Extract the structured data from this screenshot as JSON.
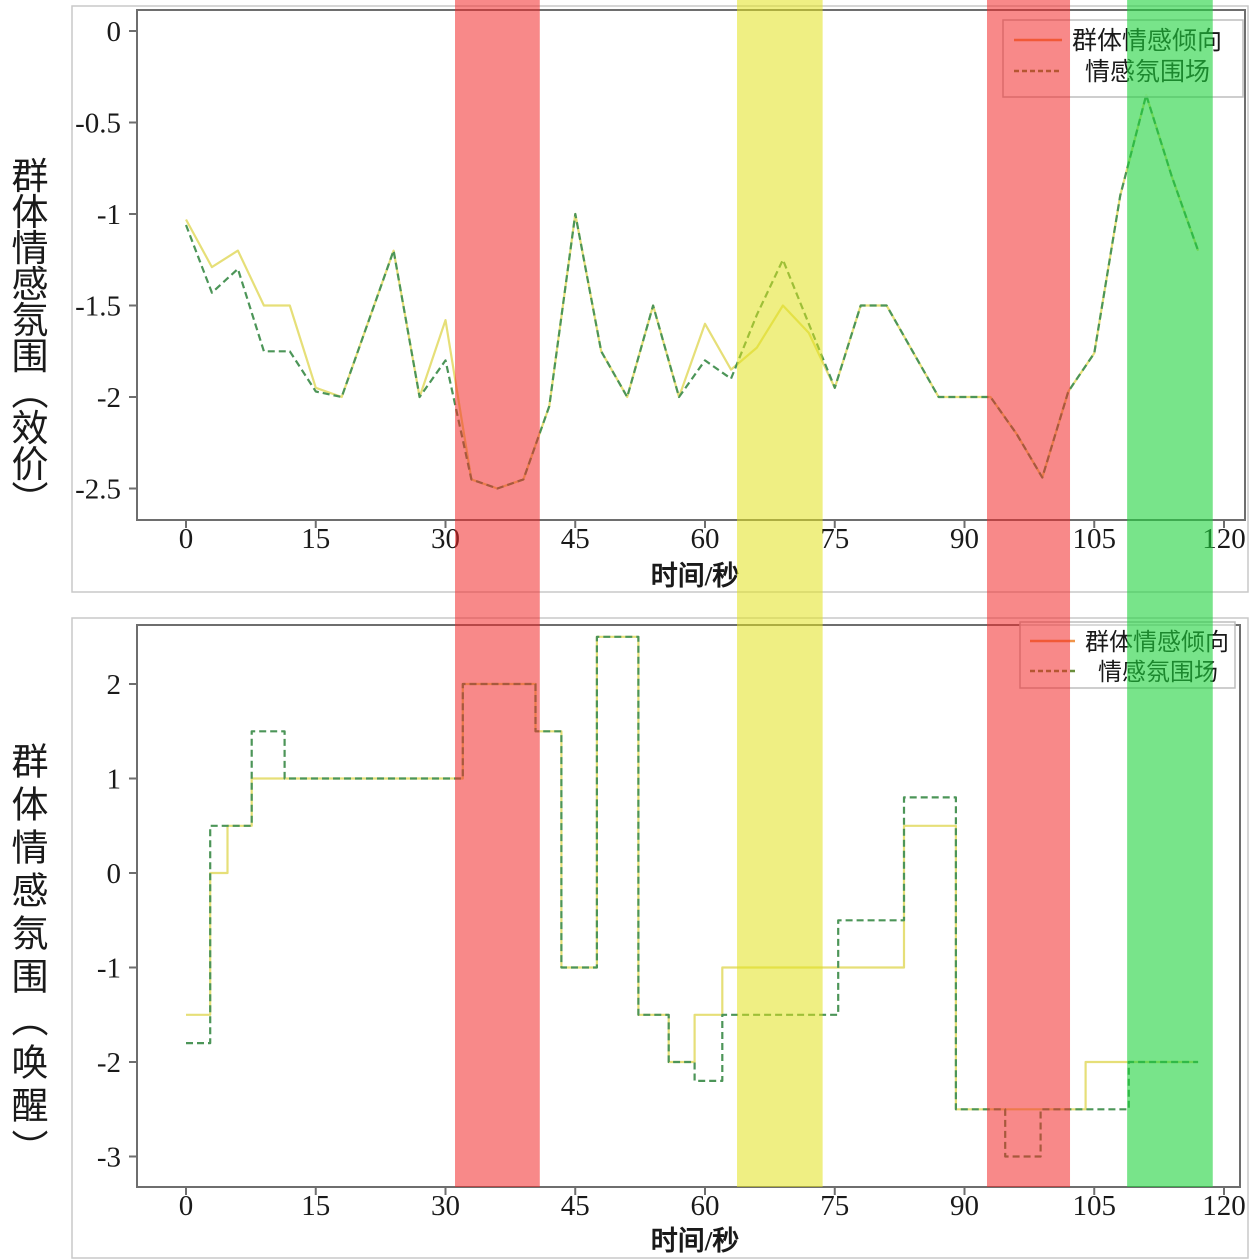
{
  "figure": {
    "background": "#ffffff",
    "border_color": "#c9c9c9",
    "spine_color": "#6e6e6e"
  },
  "highlight_bands": [
    {
      "name": "red-band-1",
      "t0": 31.1,
      "t1": 40.9,
      "color": "rgba(242,40,40,0.55)"
    },
    {
      "name": "yellow-band",
      "t0": 63.7,
      "t1": 73.6,
      "color": "rgba(225,225,30,0.55)"
    },
    {
      "name": "red-band-2",
      "t0": 92.6,
      "t1": 102.2,
      "color": "rgba(242,40,40,0.55)"
    },
    {
      "name": "green-band",
      "t0": 108.8,
      "t1": 118.7,
      "color": "rgba(30,210,60,0.6)"
    }
  ],
  "chart_data": [
    {
      "type": "line",
      "title": "",
      "xlabel": "时间/秒",
      "ylabel": "群体情感氛围（效价）",
      "xlim": [
        -5.7,
        122.4
      ],
      "ylim": [
        -2.67,
        0.12
      ],
      "x_ticks": [
        0,
        15,
        30,
        45,
        60,
        75,
        90,
        105,
        120
      ],
      "y_ticks": [
        0,
        -0.5,
        -1,
        -1.5,
        -2,
        -2.5
      ],
      "grid": false,
      "legend_position": "upper right",
      "legend": [
        "群体情感倾向",
        "情感氛围场"
      ],
      "series": [
        {
          "name": "群体情感倾向",
          "style": "solid",
          "color": "#e6df78",
          "legend_color": "#f0944a",
          "points": [
            [
              0,
              -1.03
            ],
            [
              3,
              -1.29
            ],
            [
              6,
              -1.2
            ],
            [
              9,
              -1.5
            ],
            [
              12,
              -1.5
            ],
            [
              15,
              -1.95
            ],
            [
              18,
              -2.0
            ],
            [
              21,
              -1.6
            ],
            [
              24,
              -1.2
            ],
            [
              27,
              -2.0
            ],
            [
              30,
              -1.58
            ],
            [
              33,
              -2.45
            ],
            [
              36,
              -2.5
            ],
            [
              39,
              -2.45
            ],
            [
              42,
              -2.05
            ],
            [
              45,
              -1.0
            ],
            [
              48,
              -1.75
            ],
            [
              51,
              -2.0
            ],
            [
              54,
              -1.5
            ],
            [
              57,
              -2.0
            ],
            [
              60,
              -1.6
            ],
            [
              63,
              -1.85
            ],
            [
              66,
              -1.73
            ],
            [
              69,
              -1.5
            ],
            [
              72,
              -1.65
            ],
            [
              75,
              -1.95
            ],
            [
              78,
              -1.5
            ],
            [
              81,
              -1.5
            ],
            [
              84,
              -1.75
            ],
            [
              87,
              -2.0
            ],
            [
              90,
              -2.0
            ],
            [
              93,
              -2.0
            ],
            [
              96,
              -2.2
            ],
            [
              99,
              -2.44
            ],
            [
              102,
              -1.97
            ],
            [
              105,
              -1.76
            ],
            [
              108,
              -0.9
            ],
            [
              111,
              -0.35
            ],
            [
              114,
              -0.8
            ],
            [
              117,
              -1.2
            ]
          ]
        },
        {
          "name": "情感氛围场",
          "style": "dashed",
          "color": "#4c9558",
          "legend_color": "#6a8f3c",
          "points": [
            [
              0,
              -1.06
            ],
            [
              3,
              -1.43
            ],
            [
              6,
              -1.3
            ],
            [
              9,
              -1.75
            ],
            [
              12,
              -1.75
            ],
            [
              15,
              -1.97
            ],
            [
              18,
              -2.0
            ],
            [
              21,
              -1.6
            ],
            [
              24,
              -1.2
            ],
            [
              27,
              -2.0
            ],
            [
              30,
              -1.8
            ],
            [
              33,
              -2.45
            ],
            [
              36,
              -2.5
            ],
            [
              39,
              -2.45
            ],
            [
              42,
              -2.05
            ],
            [
              45,
              -1.0
            ],
            [
              48,
              -1.75
            ],
            [
              51,
              -2.0
            ],
            [
              54,
              -1.5
            ],
            [
              57,
              -2.0
            ],
            [
              60,
              -1.8
            ],
            [
              63,
              -1.9
            ],
            [
              66,
              -1.55
            ],
            [
              69,
              -1.25
            ],
            [
              72,
              -1.6
            ],
            [
              75,
              -1.95
            ],
            [
              78,
              -1.5
            ],
            [
              81,
              -1.5
            ],
            [
              84,
              -1.75
            ],
            [
              87,
              -2.0
            ],
            [
              90,
              -2.0
            ],
            [
              93,
              -2.0
            ],
            [
              96,
              -2.2
            ],
            [
              99,
              -2.44
            ],
            [
              102,
              -1.97
            ],
            [
              105,
              -1.76
            ],
            [
              108,
              -0.9
            ],
            [
              111,
              -0.35
            ],
            [
              114,
              -0.8
            ],
            [
              117,
              -1.2
            ]
          ]
        }
      ]
    },
    {
      "type": "line",
      "step": "post",
      "title": "",
      "xlabel": "时间/秒",
      "ylabel": "群体情感氛围（唤醒）",
      "xlim": [
        -5.7,
        121.9
      ],
      "ylim": [
        -3.32,
        2.62
      ],
      "x_ticks": [
        0,
        15,
        30,
        45,
        60,
        75,
        90,
        105,
        120
      ],
      "y_ticks": [
        2,
        1,
        0,
        -1,
        -2,
        -3
      ],
      "grid": false,
      "legend_position": "upper right",
      "legend": [
        "群体情感倾向",
        "情感氛围场"
      ],
      "t_end": 117,
      "series": [
        {
          "name": "群体情感倾向",
          "style": "solid",
          "color": "#e6df78",
          "legend_color": "#f0944a",
          "points": [
            [
              0,
              -1.5
            ],
            [
              2.8,
              0
            ],
            [
              4.8,
              0.5
            ],
            [
              7.6,
              1.0
            ],
            [
              32,
              2.0
            ],
            [
              40.4,
              1.5
            ],
            [
              43.4,
              -1.0
            ],
            [
              47.5,
              2.5
            ],
            [
              52.3,
              -1.5
            ],
            [
              55.8,
              -2.0
            ],
            [
              58.8,
              -1.5
            ],
            [
              62,
              -1.0
            ],
            [
              83,
              0.5
            ],
            [
              89,
              -2.5
            ],
            [
              104,
              -2.0
            ]
          ]
        },
        {
          "name": "情感氛围场",
          "style": "dashed",
          "color": "#4c9558",
          "legend_color": "#6a8f3c",
          "points": [
            [
              0,
              -1.8
            ],
            [
              2.8,
              0.5
            ],
            [
              7.6,
              1.5
            ],
            [
              11.4,
              1.0
            ],
            [
              32,
              2.0
            ],
            [
              40.4,
              1.5
            ],
            [
              43.4,
              -1.0
            ],
            [
              47.5,
              2.5
            ],
            [
              52.3,
              -1.5
            ],
            [
              55.8,
              -2.0
            ],
            [
              58.8,
              -2.2
            ],
            [
              62,
              -1.5
            ],
            [
              75.4,
              -0.5
            ],
            [
              83,
              0.8
            ],
            [
              89,
              -2.5
            ],
            [
              94.7,
              -3.0
            ],
            [
              98.8,
              -2.5
            ],
            [
              109,
              -2.0
            ]
          ]
        }
      ]
    }
  ]
}
